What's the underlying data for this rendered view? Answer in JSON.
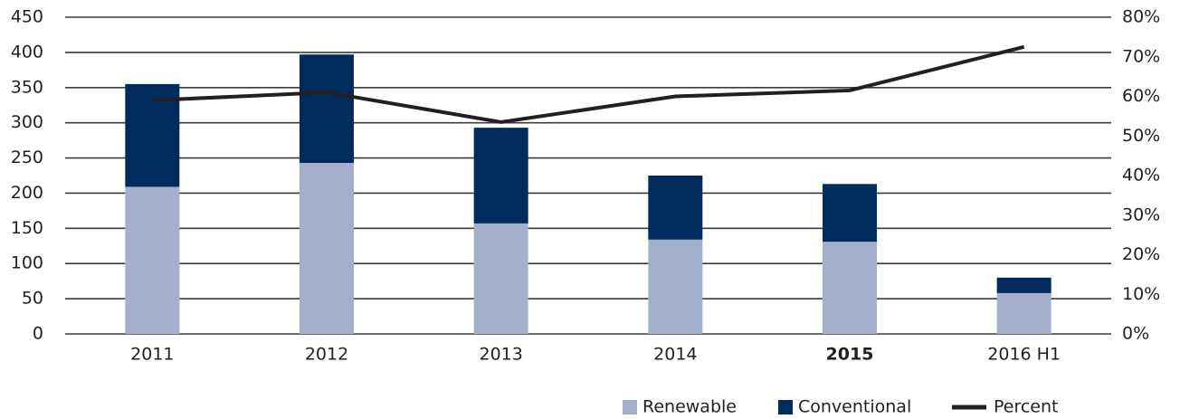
{
  "chart_data": {
    "type": "bar",
    "stacked": true,
    "categories": [
      "2011",
      "2012",
      "2013",
      "2014",
      "2015",
      "2016 H1"
    ],
    "bold_category": 4,
    "series": [
      {
        "name": "Renewable",
        "color": "#a3afcb",
        "values": [
          209,
          243,
          157,
          134,
          131,
          58
        ]
      },
      {
        "name": "Conventional",
        "color": "#002b5c",
        "values": [
          146,
          154,
          136,
          91,
          82,
          22
        ]
      },
      {
        "name": "Percent",
        "color": "#231f20",
        "type": "line",
        "axis": "y2",
        "values": [
          59,
          61,
          53.5,
          60,
          61.5,
          72.5
        ]
      }
    ],
    "ylim": [
      0,
      450
    ],
    "yticks": [
      0,
      50,
      100,
      150,
      200,
      250,
      300,
      350,
      400,
      450
    ],
    "y2lim": [
      0,
      80
    ],
    "y2ticks": [
      {
        "value": 0,
        "label": "0%"
      },
      {
        "value": 10,
        "label": "10%"
      },
      {
        "value": 20,
        "label": "20%"
      },
      {
        "value": 30,
        "label": "30%"
      },
      {
        "value": 40,
        "label": "40%"
      },
      {
        "value": 50,
        "label": "50%"
      },
      {
        "value": 60,
        "label": "60%"
      },
      {
        "value": 70,
        "label": "70%"
      },
      {
        "value": 80,
        "label": "80%"
      }
    ],
    "grid": true,
    "legend": "bottom-right"
  }
}
